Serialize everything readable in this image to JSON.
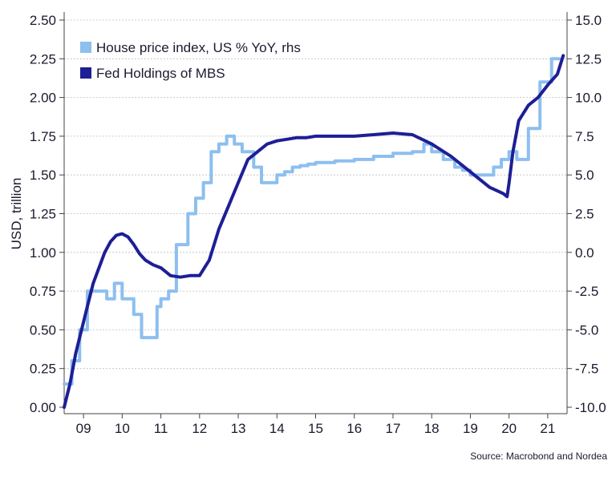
{
  "chart_data": {
    "type": "line",
    "ylabel": "USD, trillion",
    "source": "Source: Macrobond and Nordea",
    "x_tick_labels": [
      "09",
      "10",
      "11",
      "12",
      "13",
      "14",
      "15",
      "16",
      "17",
      "18",
      "19",
      "20",
      "21"
    ],
    "x_range": [
      2008.5,
      2021.5
    ],
    "y_left": {
      "range": [
        0.0,
        2.5
      ],
      "ticks": [
        "0.00",
        "0.25",
        "0.50",
        "0.75",
        "1.00",
        "1.25",
        "1.50",
        "1.75",
        "2.00",
        "2.25",
        "2.50"
      ]
    },
    "y_right": {
      "range": [
        -10.0,
        15.0
      ],
      "ticks": [
        "-10.0",
        "-7.5",
        "-5.0",
        "-2.5",
        "0.0",
        "2.5",
        "5.0",
        "7.5",
        "10.0",
        "12.5",
        "15.0"
      ]
    },
    "grid": "horizontal",
    "legend": "top-left",
    "series": [
      {
        "name": "House price index, US % YoY, rhs",
        "axis": "right",
        "color": "#8dbfef",
        "step": true,
        "x": [
          2008.5,
          2008.7,
          2008.9,
          2009.1,
          2009.3,
          2009.6,
          2009.8,
          2010.0,
          2010.3,
          2010.5,
          2010.7,
          2010.9,
          2011.0,
          2011.2,
          2011.4,
          2011.7,
          2011.9,
          2012.1,
          2012.3,
          2012.5,
          2012.7,
          2012.9,
          2013.1,
          2013.4,
          2013.6,
          2013.9,
          2014.0,
          2014.2,
          2014.4,
          2014.6,
          2014.8,
          2015.0,
          2015.5,
          2016.0,
          2016.5,
          2017.0,
          2017.5,
          2017.8,
          2018.0,
          2018.3,
          2018.6,
          2018.8,
          2019.0,
          2019.3,
          2019.6,
          2019.8,
          2020.0,
          2020.2,
          2020.5,
          2020.8,
          2021.1,
          2021.3
        ],
        "values": [
          -8.5,
          -7.0,
          -5.0,
          -2.5,
          -2.5,
          -3.0,
          -2.0,
          -3.0,
          -4.0,
          -5.5,
          -5.5,
          -3.5,
          -3.0,
          -2.5,
          0.5,
          2.5,
          3.5,
          4.5,
          6.5,
          7.0,
          7.5,
          7.0,
          6.5,
          5.5,
          4.5,
          4.5,
          5.0,
          5.2,
          5.5,
          5.6,
          5.7,
          5.8,
          5.9,
          6.0,
          6.2,
          6.4,
          6.5,
          7.0,
          6.5,
          6.0,
          5.5,
          5.3,
          5.0,
          5.0,
          5.5,
          6.0,
          6.5,
          6.0,
          8.0,
          11.0,
          12.5,
          12.5
        ]
      },
      {
        "name": "Fed Holdings of MBS",
        "axis": "left",
        "color": "#1e1e96",
        "step": false,
        "x": [
          2008.5,
          2008.65,
          2008.8,
          2008.95,
          2009.1,
          2009.25,
          2009.4,
          2009.55,
          2009.7,
          2009.85,
          2010.0,
          2010.15,
          2010.3,
          2010.45,
          2010.6,
          2010.8,
          2011.0,
          2011.25,
          2011.5,
          2011.75,
          2012.0,
          2012.25,
          2012.5,
          2012.75,
          2013.0,
          2013.25,
          2013.5,
          2013.75,
          2014.0,
          2014.25,
          2014.5,
          2014.75,
          2015.0,
          2015.5,
          2016.0,
          2016.5,
          2017.0,
          2017.5,
          2018.0,
          2018.5,
          2019.0,
          2019.5,
          2019.85,
          2019.95,
          2020.0,
          2020.1,
          2020.25,
          2020.5,
          2020.75,
          2021.0,
          2021.25,
          2021.4
        ],
        "values": [
          0.0,
          0.15,
          0.35,
          0.5,
          0.65,
          0.8,
          0.9,
          1.0,
          1.07,
          1.11,
          1.12,
          1.1,
          1.05,
          0.99,
          0.95,
          0.92,
          0.9,
          0.85,
          0.84,
          0.85,
          0.85,
          0.95,
          1.15,
          1.3,
          1.45,
          1.6,
          1.65,
          1.7,
          1.72,
          1.73,
          1.74,
          1.74,
          1.75,
          1.75,
          1.75,
          1.76,
          1.77,
          1.76,
          1.7,
          1.62,
          1.52,
          1.42,
          1.38,
          1.36,
          1.45,
          1.65,
          1.85,
          1.95,
          2.0,
          2.08,
          2.15,
          2.27
        ]
      }
    ]
  }
}
